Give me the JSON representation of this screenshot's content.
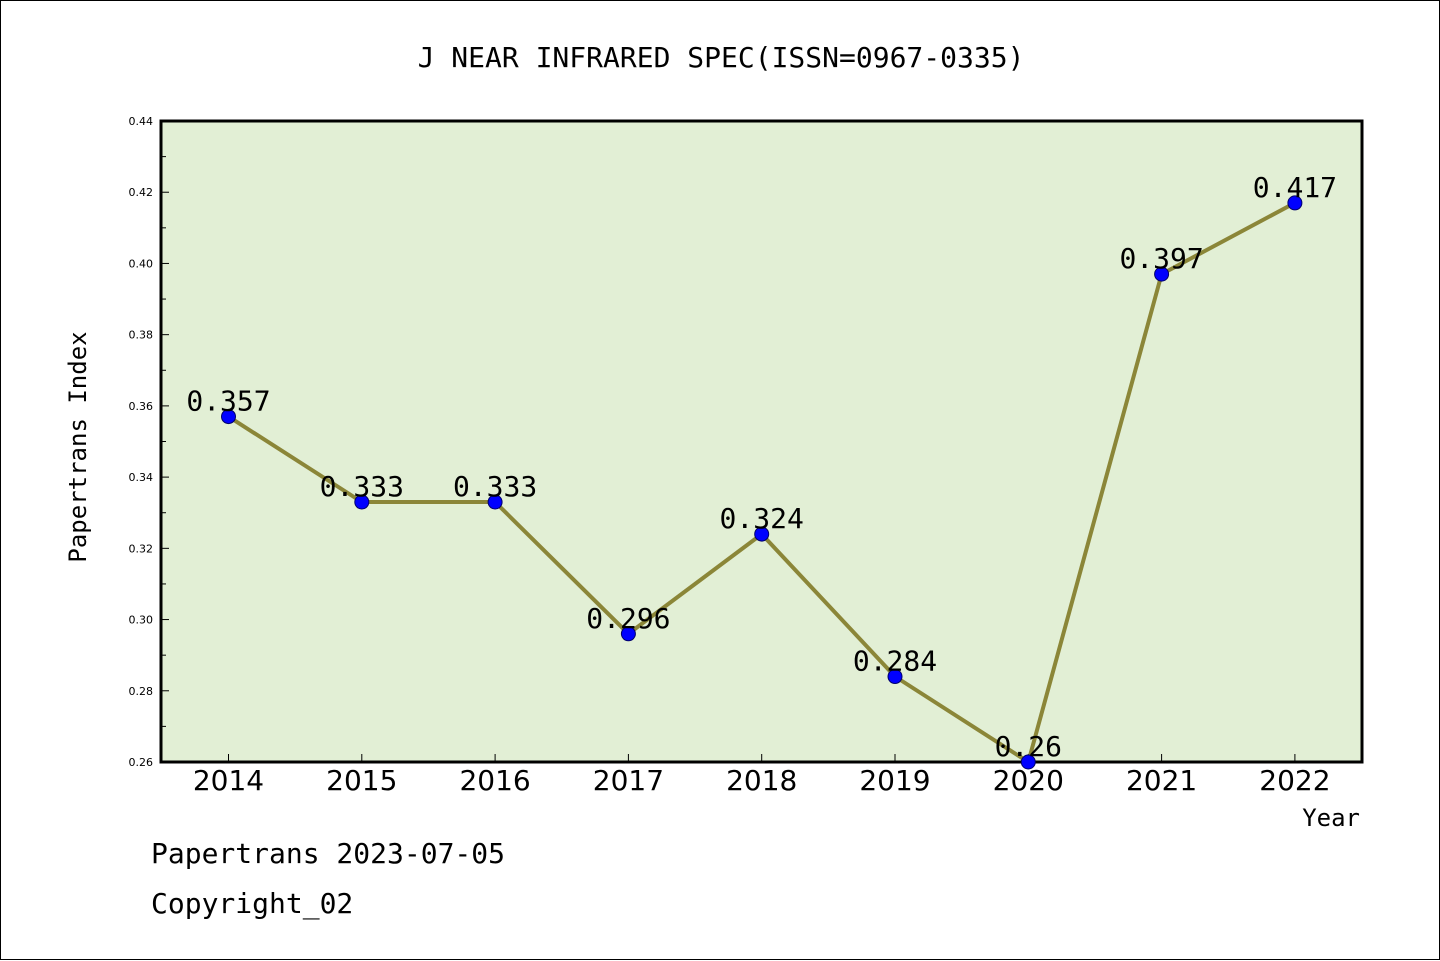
{
  "chart_data": {
    "type": "line",
    "title": "J NEAR INFRARED SPEC(ISSN=0967-0335)",
    "xlabel": "Year",
    "ylabel": "Papertrans Index",
    "categories": [
      "2014",
      "2015",
      "2016",
      "2017",
      "2018",
      "2019",
      "2020",
      "2021",
      "2022"
    ],
    "values": [
      0.357,
      0.333,
      0.333,
      0.296,
      0.324,
      0.284,
      0.26,
      0.397,
      0.417
    ],
    "data_labels": [
      "0.357",
      "0.333",
      "0.333",
      "0.296",
      "0.324",
      "0.284",
      "0.26",
      "0.397",
      "0.417"
    ],
    "ylim": [
      0.26,
      0.44
    ],
    "yticks": [
      "0.26",
      "0.28",
      "0.30",
      "0.32",
      "0.34",
      "0.36",
      "0.38",
      "0.40",
      "0.42",
      "0.44"
    ],
    "grid": false,
    "legend": "none",
    "colors": {
      "line": "#8B8638",
      "marker": "#0000FF",
      "plot_background": "#E2EFD5"
    }
  },
  "footer": {
    "date_line": "Papertrans 2023-07-05",
    "copyright_line": "Copyright_02"
  }
}
